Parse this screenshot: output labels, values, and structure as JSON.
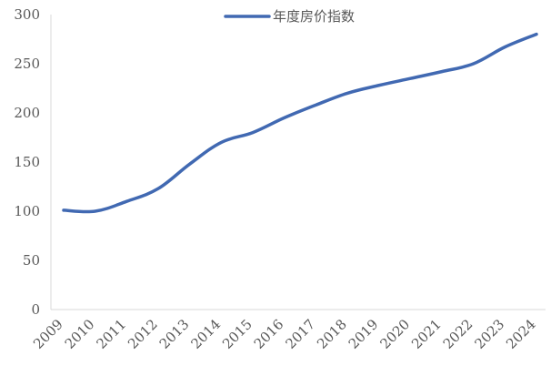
{
  "chart_data": {
    "type": "line",
    "title": "",
    "xlabel": "",
    "ylabel": "",
    "categories": [
      "2009",
      "2010",
      "2011",
      "2012",
      "2013",
      "2014",
      "2015",
      "2016",
      "2017",
      "2018",
      "2019",
      "2020",
      "2021",
      "2022",
      "2023",
      "2024"
    ],
    "series": [
      {
        "name": "年度房价指数",
        "color": "#4169B2",
        "values": [
          101,
          100,
          110,
          123,
          148,
          170,
          180,
          195,
          208,
          220,
          228,
          235,
          242,
          250,
          267,
          280
        ]
      }
    ],
    "ylim": [
      0,
      300
    ],
    "yticks": [
      0,
      50,
      100,
      150,
      200,
      250,
      300
    ],
    "grid": false,
    "legend_position": "top"
  }
}
